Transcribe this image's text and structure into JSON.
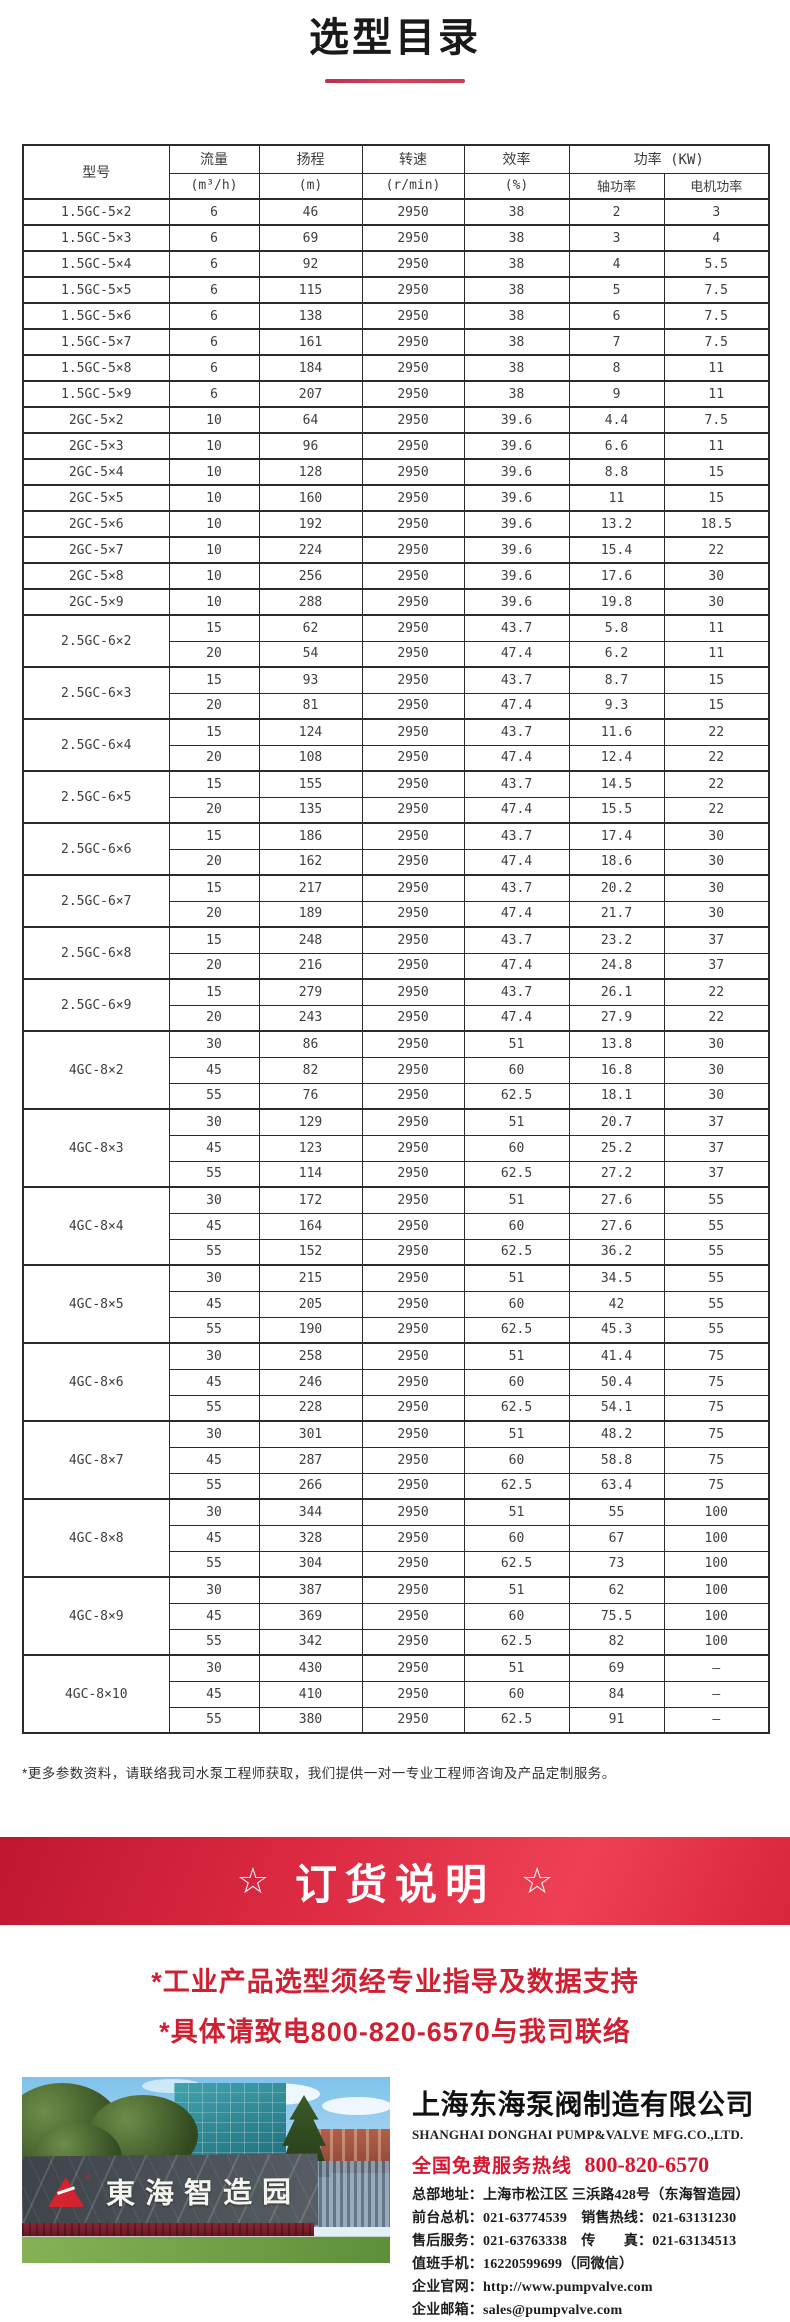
{
  "page": {
    "title": "选型目录",
    "footnote": "*更多参数资料，请联络我司水泵工程师获取，我们提供一对一专业工程师咨询及产品定制服务。"
  },
  "table": {
    "headers": {
      "model": "型号",
      "flow": "流量",
      "flow_unit": "(m³/h)",
      "head": "扬程",
      "head_unit": "(m)",
      "speed": "转速",
      "speed_unit": "(r/min)",
      "efficiency": "效率",
      "efficiency_unit": "(%)",
      "power": "功率 (KW)",
      "shaft_power": "轴功率",
      "motor_power": "电机功率"
    },
    "groups": [
      {
        "model": "1.5GC-5×2",
        "rows": [
          [
            "6",
            "46",
            "2950",
            "38",
            "2",
            "3"
          ]
        ]
      },
      {
        "model": "1.5GC-5×3",
        "rows": [
          [
            "6",
            "69",
            "2950",
            "38",
            "3",
            "4"
          ]
        ]
      },
      {
        "model": "1.5GC-5×4",
        "rows": [
          [
            "6",
            "92",
            "2950",
            "38",
            "4",
            "5.5"
          ]
        ]
      },
      {
        "model": "1.5GC-5×5",
        "rows": [
          [
            "6",
            "115",
            "2950",
            "38",
            "5",
            "7.5"
          ]
        ]
      },
      {
        "model": "1.5GC-5×6",
        "rows": [
          [
            "6",
            "138",
            "2950",
            "38",
            "6",
            "7.5"
          ]
        ]
      },
      {
        "model": "1.5GC-5×7",
        "rows": [
          [
            "6",
            "161",
            "2950",
            "38",
            "7",
            "7.5"
          ]
        ]
      },
      {
        "model": "1.5GC-5×8",
        "rows": [
          [
            "6",
            "184",
            "2950",
            "38",
            "8",
            "11"
          ]
        ]
      },
      {
        "model": "1.5GC-5×9",
        "rows": [
          [
            "6",
            "207",
            "2950",
            "38",
            "9",
            "11"
          ]
        ]
      },
      {
        "model": "2GC-5×2",
        "rows": [
          [
            "10",
            "64",
            "2950",
            "39.6",
            "4.4",
            "7.5"
          ]
        ]
      },
      {
        "model": "2GC-5×3",
        "rows": [
          [
            "10",
            "96",
            "2950",
            "39.6",
            "6.6",
            "11"
          ]
        ]
      },
      {
        "model": "2GC-5×4",
        "rows": [
          [
            "10",
            "128",
            "2950",
            "39.6",
            "8.8",
            "15"
          ]
        ]
      },
      {
        "model": "2GC-5×5",
        "rows": [
          [
            "10",
            "160",
            "2950",
            "39.6",
            "11",
            "15"
          ]
        ]
      },
      {
        "model": "2GC-5×6",
        "rows": [
          [
            "10",
            "192",
            "2950",
            "39.6",
            "13.2",
            "18.5"
          ]
        ]
      },
      {
        "model": "2GC-5×7",
        "rows": [
          [
            "10",
            "224",
            "2950",
            "39.6",
            "15.4",
            "22"
          ]
        ]
      },
      {
        "model": "2GC-5×8",
        "rows": [
          [
            "10",
            "256",
            "2950",
            "39.6",
            "17.6",
            "30"
          ]
        ]
      },
      {
        "model": "2GC-5×9",
        "rows": [
          [
            "10",
            "288",
            "2950",
            "39.6",
            "19.8",
            "30"
          ]
        ]
      },
      {
        "model": "2.5GC-6×2",
        "rows": [
          [
            "15",
            "62",
            "2950",
            "43.7",
            "5.8",
            "11"
          ],
          [
            "20",
            "54",
            "2950",
            "47.4",
            "6.2",
            "11"
          ]
        ]
      },
      {
        "model": "2.5GC-6×3",
        "rows": [
          [
            "15",
            "93",
            "2950",
            "43.7",
            "8.7",
            "15"
          ],
          [
            "20",
            "81",
            "2950",
            "47.4",
            "9.3",
            "15"
          ]
        ]
      },
      {
        "model": "2.5GC-6×4",
        "rows": [
          [
            "15",
            "124",
            "2950",
            "43.7",
            "11.6",
            "22"
          ],
          [
            "20",
            "108",
            "2950",
            "47.4",
            "12.4",
            "22"
          ]
        ]
      },
      {
        "model": "2.5GC-6×5",
        "rows": [
          [
            "15",
            "155",
            "2950",
            "43.7",
            "14.5",
            "22"
          ],
          [
            "20",
            "135",
            "2950",
            "47.4",
            "15.5",
            "22"
          ]
        ]
      },
      {
        "model": "2.5GC-6×6",
        "rows": [
          [
            "15",
            "186",
            "2950",
            "43.7",
            "17.4",
            "30"
          ],
          [
            "20",
            "162",
            "2950",
            "47.4",
            "18.6",
            "30"
          ]
        ]
      },
      {
        "model": "2.5GC-6×7",
        "rows": [
          [
            "15",
            "217",
            "2950",
            "43.7",
            "20.2",
            "30"
          ],
          [
            "20",
            "189",
            "2950",
            "47.4",
            "21.7",
            "30"
          ]
        ]
      },
      {
        "model": "2.5GC-6×8",
        "rows": [
          [
            "15",
            "248",
            "2950",
            "43.7",
            "23.2",
            "37"
          ],
          [
            "20",
            "216",
            "2950",
            "47.4",
            "24.8",
            "37"
          ]
        ]
      },
      {
        "model": "2.5GC-6×9",
        "rows": [
          [
            "15",
            "279",
            "2950",
            "43.7",
            "26.1",
            "22"
          ],
          [
            "20",
            "243",
            "2950",
            "47.4",
            "27.9",
            "22"
          ]
        ]
      },
      {
        "model": "4GC-8×2",
        "rows": [
          [
            "30",
            "86",
            "2950",
            "51",
            "13.8",
            "30"
          ],
          [
            "45",
            "82",
            "2950",
            "60",
            "16.8",
            "30"
          ],
          [
            "55",
            "76",
            "2950",
            "62.5",
            "18.1",
            "30"
          ]
        ]
      },
      {
        "model": "4GC-8×3",
        "rows": [
          [
            "30",
            "129",
            "2950",
            "51",
            "20.7",
            "37"
          ],
          [
            "45",
            "123",
            "2950",
            "60",
            "25.2",
            "37"
          ],
          [
            "55",
            "114",
            "2950",
            "62.5",
            "27.2",
            "37"
          ]
        ]
      },
      {
        "model": "4GC-8×4",
        "rows": [
          [
            "30",
            "172",
            "2950",
            "51",
            "27.6",
            "55"
          ],
          [
            "45",
            "164",
            "2950",
            "60",
            "27.6",
            "55"
          ],
          [
            "55",
            "152",
            "2950",
            "62.5",
            "36.2",
            "55"
          ]
        ]
      },
      {
        "model": "4GC-8×5",
        "rows": [
          [
            "30",
            "215",
            "2950",
            "51",
            "34.5",
            "55"
          ],
          [
            "45",
            "205",
            "2950",
            "60",
            "42",
            "55"
          ],
          [
            "55",
            "190",
            "2950",
            "62.5",
            "45.3",
            "55"
          ]
        ]
      },
      {
        "model": "4GC-8×6",
        "rows": [
          [
            "30",
            "258",
            "2950",
            "51",
            "41.4",
            "75"
          ],
          [
            "45",
            "246",
            "2950",
            "60",
            "50.4",
            "75"
          ],
          [
            "55",
            "228",
            "2950",
            "62.5",
            "54.1",
            "75"
          ]
        ]
      },
      {
        "model": "4GC-8×7",
        "rows": [
          [
            "30",
            "301",
            "2950",
            "51",
            "48.2",
            "75"
          ],
          [
            "45",
            "287",
            "2950",
            "60",
            "58.8",
            "75"
          ],
          [
            "55",
            "266",
            "2950",
            "62.5",
            "63.4",
            "75"
          ]
        ]
      },
      {
        "model": "4GC-8×8",
        "rows": [
          [
            "30",
            "344",
            "2950",
            "51",
            "55",
            "100"
          ],
          [
            "45",
            "328",
            "2950",
            "60",
            "67",
            "100"
          ],
          [
            "55",
            "304",
            "2950",
            "62.5",
            "73",
            "100"
          ]
        ]
      },
      {
        "model": "4GC-8×9",
        "rows": [
          [
            "30",
            "387",
            "2950",
            "51",
            "62",
            "100"
          ],
          [
            "45",
            "369",
            "2950",
            "60",
            "75.5",
            "100"
          ],
          [
            "55",
            "342",
            "2950",
            "62.5",
            "82",
            "100"
          ]
        ]
      },
      {
        "model": "4GC-8×10",
        "rows": [
          [
            "30",
            "430",
            "2950",
            "51",
            "69",
            "–"
          ],
          [
            "45",
            "410",
            "2950",
            "60",
            "84",
            "–"
          ],
          [
            "55",
            "380",
            "2950",
            "62.5",
            "91",
            "–"
          ]
        ]
      }
    ]
  },
  "order_section": {
    "star": "☆",
    "banner_title": "订货说明",
    "notice_lines": [
      "*工业产品选型须经专业指导及数据支持",
      "*具体请致电800-820-6570与我司联络"
    ]
  },
  "company": {
    "name_cn": "上海东海泵阀制造有限公司",
    "name_en": "SHANGHAI DONGHAI PUMP&VALVE MFG.CO.,LTD.",
    "hotline_label": "全国免费服务热线",
    "hotline_number": "800-820-6570",
    "info_lines": [
      "总部地址：上海市松江区 三浜路428号（东海智造园）",
      "前台总机：021-63774539　销售热线：021-63131230",
      "售后服务：021-63763338　传　　真：021-63134513",
      "值班手机：16220599699（同微信）",
      "企业官网：http://www.pumpvalve.com",
      "企业邮箱：sales@pumpvalve.com"
    ],
    "photo_sign": "東海智造园"
  },
  "colors": {
    "accent_red": "#d01f30",
    "banner_red_dark": "#bf1730",
    "banner_red_light": "#ee4055",
    "hotline_red": "#d8152f",
    "table_border": "#2b2b2b",
    "logo_red": "#d2232f"
  }
}
